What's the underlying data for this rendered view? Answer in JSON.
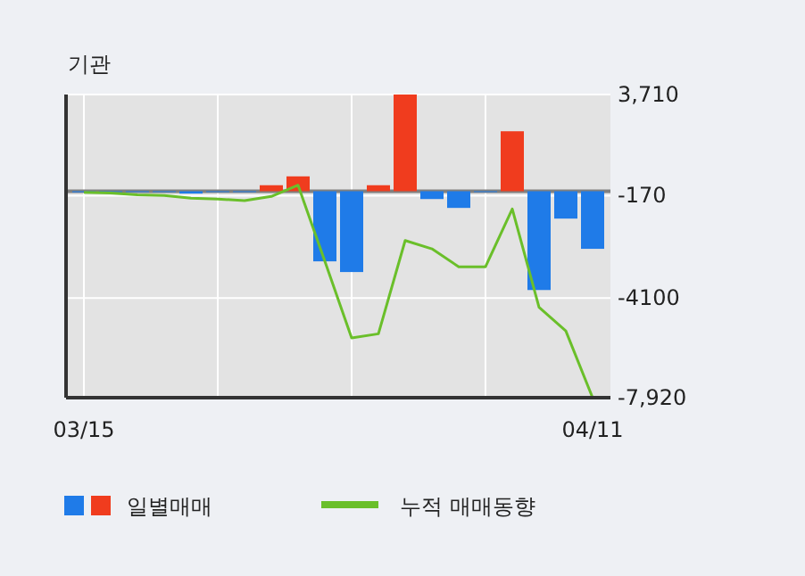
{
  "chart_data": {
    "type": "bar",
    "title": "기관",
    "categories": [
      "03/15",
      null,
      null,
      null,
      null,
      null,
      null,
      null,
      null,
      null,
      null,
      null,
      null,
      null,
      null,
      null,
      null,
      null,
      null,
      "04/11"
    ],
    "series": [
      {
        "name": "일별매매",
        "values": [
          -40,
          -30,
          -20,
          -20,
          -90,
          -20,
          -20,
          230,
          570,
          -2690,
          -3100,
          230,
          3710,
          -300,
          -640,
          0,
          2300,
          -3790,
          -1050,
          -2210
        ],
        "colors": [
          "#1f7be8",
          "#1f7be8",
          "#1f7be8",
          "#1f7be8",
          "#1f7be8",
          "#1f7be8",
          "#1f7be8",
          "#f03c1e",
          "#f03c1e",
          "#1f7be8",
          "#1f7be8",
          "#f03c1e",
          "#f03c1e",
          "#1f7be8",
          "#1f7be8",
          "#1f7be8",
          "#f03c1e",
          "#1f7be8",
          "#1f7be8",
          "#1f7be8"
        ]
      },
      {
        "name": "누적 매매동향",
        "type": "line",
        "color": "#6abf2a",
        "values": [
          -40,
          -70,
          -140,
          -160,
          -270,
          -300,
          -360,
          -200,
          230,
          -2690,
          -5630,
          -5470,
          -1890,
          -2210,
          -2900,
          -2900,
          -680,
          -4450,
          -5360,
          -7920
        ]
      }
    ],
    "ylim": [
      -7920,
      3710
    ],
    "yticks": [
      {
        "value": 3710,
        "label": "3,710"
      },
      -170,
      -4100,
      {
        "value": -7920,
        "label": "-7,920"
      }
    ],
    "grid": true,
    "legend": "bottom"
  }
}
